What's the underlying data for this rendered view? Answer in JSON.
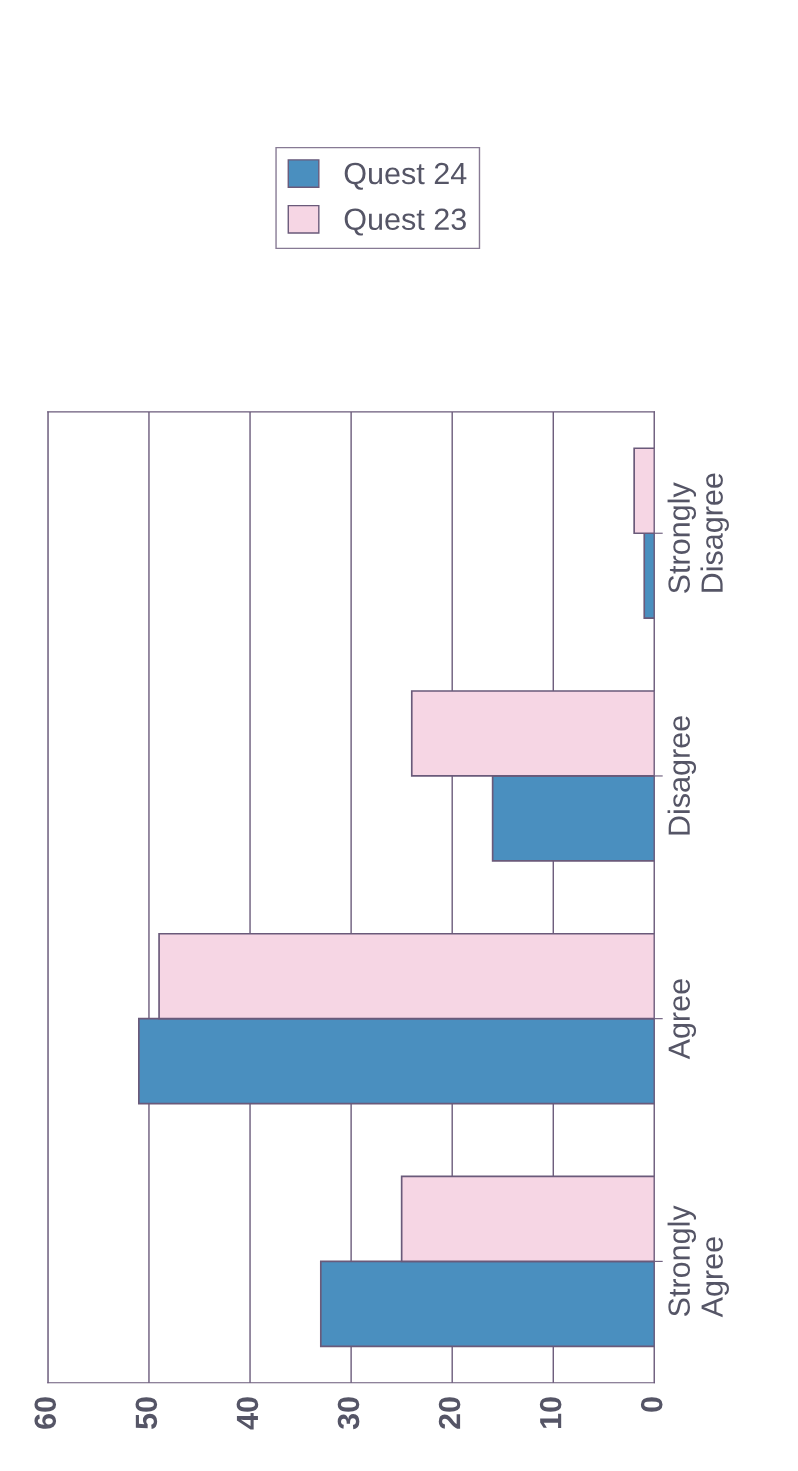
{
  "chart_data": {
    "type": "bar",
    "orientation": "horizontal",
    "categories": [
      "Strongly\nDisagree",
      "Disagree",
      "Agree",
      "Strongly\nAgree"
    ],
    "series": [
      {
        "name": "Quest 24",
        "color": "#4a8fbf",
        "values": [
          1,
          16,
          51,
          33
        ]
      },
      {
        "name": "Quest 23",
        "color": "#f6d6e4",
        "values": [
          2,
          24,
          49,
          25
        ]
      }
    ],
    "xlim": [
      60,
      0
    ],
    "xticks": [
      60,
      50,
      40,
      30,
      20,
      10,
      0
    ],
    "grid": "x",
    "legend": "top right"
  }
}
